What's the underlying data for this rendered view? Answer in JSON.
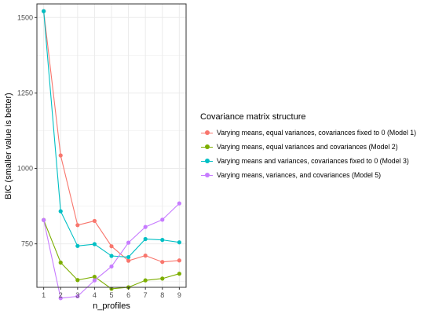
{
  "chart_data": {
    "type": "line",
    "xlabel": "n_profiles",
    "ylabel": "BIC (smaller value is better)",
    "x": [
      1,
      2,
      3,
      4,
      5,
      6,
      7,
      8,
      9
    ],
    "xlim": [
      0.6,
      9.4
    ],
    "ylim": [
      606,
      1545
    ],
    "yticks": [
      750,
      1000,
      1250,
      1500
    ],
    "grid": true,
    "legend_position": "right",
    "legend_title": "Covariance matrix structure",
    "series": [
      {
        "name": "Varying means, equal variances, covariances fixed to 0 (Model 1)",
        "color": "#F8766D",
        "values": [
          1521,
          1043,
          812,
          826,
          742,
          694,
          711,
          690,
          695
        ]
      },
      {
        "name": "Varying means, equal variances and covariances (Model 2)",
        "color": "#7CAE00",
        "values": [
          829,
          688,
          630,
          641,
          601,
          606,
          629,
          635,
          651
        ]
      },
      {
        "name": "Varying means and variances, covariances fixed to 0 (Model 3)",
        "color": "#00BFC4",
        "values": [
          1521,
          858,
          743,
          749,
          710,
          706,
          766,
          763,
          755
        ]
      },
      {
        "name": "Varying means, variances, and covariances (Model 5)",
        "color": "#C77CFF",
        "values": [
          829,
          570,
          576,
          629,
          675,
          754,
          806,
          830,
          884
        ]
      }
    ]
  }
}
